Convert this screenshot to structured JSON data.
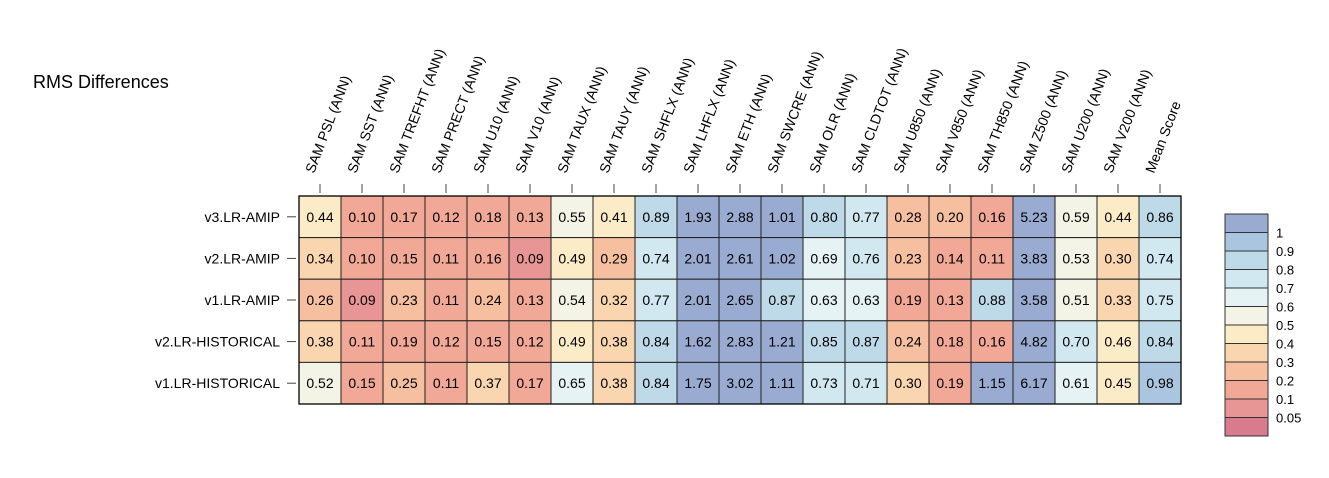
{
  "chart_data": {
    "type": "heatmap",
    "title": "RMS Differences",
    "columns": [
      "SAM PSL (ANN)",
      "SAM SST (ANN)",
      "SAM TREFHT (ANN)",
      "SAM PRECT (ANN)",
      "SAM U10 (ANN)",
      "SAM V10 (ANN)",
      "SAM TAUX (ANN)",
      "SAM TAUY (ANN)",
      "SAM SHFLX (ANN)",
      "SAM LHFLX (ANN)",
      "SAM ETH (ANN)",
      "SAM SWCRE (ANN)",
      "SAM OLR (ANN)",
      "SAM CLDTOT (ANN)",
      "SAM U850 (ANN)",
      "SAM V850 (ANN)",
      "SAM TH850 (ANN)",
      "SAM Z500 (ANN)",
      "SAM U200 (ANN)",
      "SAM V200 (ANN)",
      "Mean Score"
    ],
    "rows": [
      "v3.LR-AMIP",
      "v2.LR-AMIP",
      "v1.LR-AMIP",
      "v2.LR-HISTORICAL",
      "v1.LR-HISTORICAL"
    ],
    "values": [
      [
        "0.44",
        "0.10",
        "0.17",
        "0.12",
        "0.18",
        "0.13",
        "0.55",
        "0.41",
        "0.89",
        "1.93",
        "2.88",
        "1.01",
        "0.80",
        "0.77",
        "0.28",
        "0.20",
        "0.16",
        "5.23",
        "0.59",
        "0.44",
        "0.86"
      ],
      [
        "0.34",
        "0.10",
        "0.15",
        "0.11",
        "0.16",
        "0.09",
        "0.49",
        "0.29",
        "0.74",
        "2.01",
        "2.61",
        "1.02",
        "0.69",
        "0.76",
        "0.23",
        "0.14",
        "0.11",
        "3.83",
        "0.53",
        "0.30",
        "0.74"
      ],
      [
        "0.26",
        "0.09",
        "0.23",
        "0.11",
        "0.24",
        "0.13",
        "0.54",
        "0.32",
        "0.77",
        "2.01",
        "2.65",
        "0.87",
        "0.63",
        "0.63",
        "0.19",
        "0.13",
        "0.88",
        "3.58",
        "0.51",
        "0.33",
        "0.75"
      ],
      [
        "0.38",
        "0.11",
        "0.19",
        "0.12",
        "0.15",
        "0.12",
        "0.49",
        "0.38",
        "0.84",
        "1.62",
        "2.83",
        "1.21",
        "0.85",
        "0.87",
        "0.24",
        "0.18",
        "0.16",
        "4.82",
        "0.70",
        "0.46",
        "0.84"
      ],
      [
        "0.52",
        "0.15",
        "0.25",
        "0.11",
        "0.37",
        "0.17",
        "0.65",
        "0.38",
        "0.84",
        "1.75",
        "3.02",
        "1.11",
        "0.73",
        "0.71",
        "0.30",
        "0.19",
        "1.15",
        "6.17",
        "0.61",
        "0.45",
        "0.98"
      ]
    ],
    "colorbar": {
      "ticks": [
        "1",
        "0.9",
        "0.8",
        "0.7",
        "0.6",
        "0.5",
        "0.4",
        "0.3",
        "0.2",
        "0.1",
        "0.05"
      ],
      "bins": [
        {
          "min": 1.0,
          "color": "#9aabd1"
        },
        {
          "min": 0.9,
          "color": "#aac5df"
        },
        {
          "min": 0.8,
          "color": "#bed9e8"
        },
        {
          "min": 0.7,
          "color": "#d2e8f0"
        },
        {
          "min": 0.6,
          "color": "#e6f3f4"
        },
        {
          "min": 0.5,
          "color": "#f3f3e6"
        },
        {
          "min": 0.4,
          "color": "#fbebc6"
        },
        {
          "min": 0.3,
          "color": "#f9d6af"
        },
        {
          "min": 0.2,
          "color": "#f5bfa0"
        },
        {
          "min": 0.1,
          "color": "#f1a896"
        },
        {
          "min": 0.05,
          "color": "#e89596"
        },
        {
          "min": 0.0,
          "color": "#d77b8d"
        }
      ]
    }
  }
}
